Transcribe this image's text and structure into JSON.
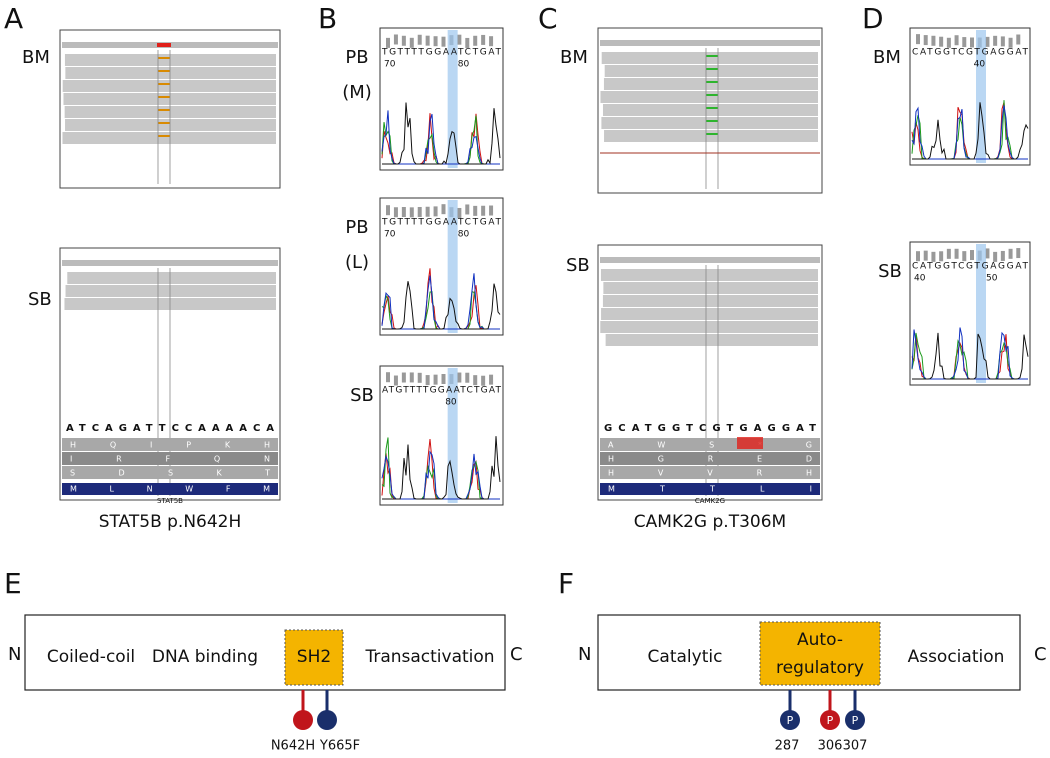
{
  "panel_a": {
    "label": "A",
    "samples": [
      "BM",
      "SB"
    ],
    "reference": "ATCAGATTCCAAAACA",
    "translation": [
      "H Q I P K H",
      "I R F Q N",
      "S D S K T"
    ],
    "protein": "M L N W F M",
    "gene": "STAT5B",
    "caption": "STAT5B p.N642H"
  },
  "panel_b": {
    "label": "B",
    "traces": [
      {
        "sample": [
          "PB",
          "(M)"
        ],
        "bases": "TGTTTTGGAATCTGAT",
        "ticks": [
          "70",
          "80"
        ]
      },
      {
        "sample": [
          "PB",
          "(L)"
        ],
        "bases": "TGTTTTGGAATCTGAT",
        "ticks": [
          "70",
          "80"
        ]
      },
      {
        "sample": [
          "SB"
        ],
        "bases": "ATGTTTTGGAATCTGAT",
        "ticks": [
          "80"
        ]
      }
    ]
  },
  "panel_c": {
    "label": "C",
    "samples": [
      "BM",
      "SB"
    ],
    "reference": "GCATGGTCGTGAGGAT",
    "translation": [
      "A W S * G",
      "H G R E D",
      "H V V R H"
    ],
    "protein": "M T T L I",
    "gene": "CAMK2G",
    "caption": "CAMK2G p.T306M"
  },
  "panel_d": {
    "label": "D",
    "traces": [
      {
        "sample": [
          "BM"
        ],
        "bases": "CATGGTCGTGAGGAT",
        "ticks": [
          "40"
        ]
      },
      {
        "sample": [
          "SB"
        ],
        "bases": "CATGGTCGTGAGGAT",
        "ticks": [
          "40",
          "50"
        ]
      }
    ]
  },
  "panel_e": {
    "label": "E",
    "n_term": "N",
    "c_term": "C",
    "domains": [
      "Coiled-coil",
      "DNA binding",
      "SH2",
      "Transactivation"
    ],
    "mutations": [
      "N642H",
      "Y665F"
    ]
  },
  "panel_f": {
    "label": "F",
    "n_term": "N",
    "c_term": "C",
    "domains": [
      "Catalytic",
      "Auto-",
      "regulatory",
      "Association"
    ],
    "sites": [
      {
        "position": "287",
        "marker": "P"
      },
      {
        "position": "306",
        "marker": "P"
      },
      {
        "position": "307",
        "marker": "P"
      }
    ]
  }
}
